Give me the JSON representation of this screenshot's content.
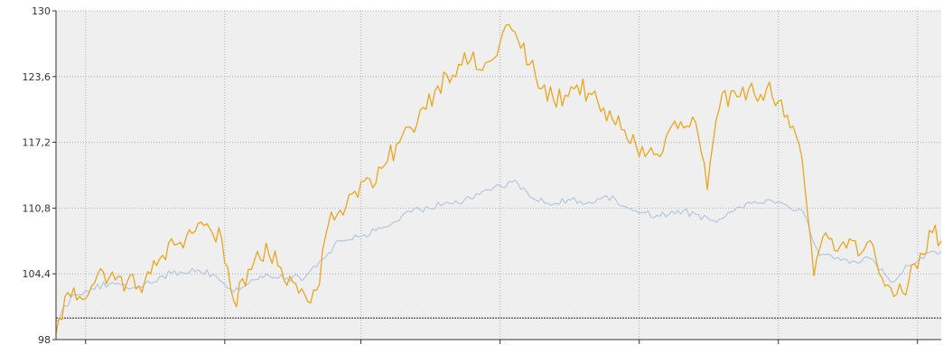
{
  "chart_data": {
    "type": "line",
    "title": "",
    "xlabel": "",
    "ylabel": "",
    "ylim": [
      98,
      130
    ],
    "xlim": [
      0,
      299
    ],
    "y_ticks": [
      98,
      104.4,
      110.8,
      117.2,
      123.6,
      130
    ],
    "y_tick_labels": [
      "98",
      "104,4",
      "110,8",
      "117,2",
      "123,6",
      "130"
    ],
    "x_ticks": [
      10,
      57,
      103,
      150,
      197,
      244,
      291
    ],
    "x_tick_labels": [],
    "grid": true,
    "baseline": 100.1,
    "colors": {
      "background": "#efefef",
      "grid": "#b0b0b0",
      "axis": "#333333",
      "baseline": "#222222"
    },
    "series": [
      {
        "color": "#e8a623",
        "x_range": [
          0,
          299
        ],
        "anchors": [
          [
            0,
            98.6
          ],
          [
            4,
            102.6
          ],
          [
            8,
            102.2
          ],
          [
            12,
            103.2
          ],
          [
            16,
            104.6
          ],
          [
            20,
            103.8
          ],
          [
            24,
            103.6
          ],
          [
            28,
            103.2
          ],
          [
            32,
            104.4
          ],
          [
            36,
            106.2
          ],
          [
            40,
            107.2
          ],
          [
            44,
            108.0
          ],
          [
            48,
            109.3
          ],
          [
            52,
            108.8
          ],
          [
            56,
            107.8
          ],
          [
            60,
            101.8
          ],
          [
            64,
            103.2
          ],
          [
            68,
            106.6
          ],
          [
            72,
            106.2
          ],
          [
            76,
            105.0
          ],
          [
            80,
            103.6
          ],
          [
            84,
            102.4
          ],
          [
            88,
            102.8
          ],
          [
            92,
            109.2
          ],
          [
            96,
            110.6
          ],
          [
            100,
            112.2
          ],
          [
            104,
            113.4
          ],
          [
            108,
            113.2
          ],
          [
            112,
            115.4
          ],
          [
            116,
            117.2
          ],
          [
            120,
            118.6
          ],
          [
            124,
            120.6
          ],
          [
            128,
            122.2
          ],
          [
            132,
            123.8
          ],
          [
            136,
            124.8
          ],
          [
            140,
            125.2
          ],
          [
            144,
            124.2
          ],
          [
            148,
            125.4
          ],
          [
            152,
            128.6
          ],
          [
            156,
            127.2
          ],
          [
            160,
            124.8
          ],
          [
            164,
            122.4
          ],
          [
            168,
            121.4
          ],
          [
            172,
            121.8
          ],
          [
            176,
            122.8
          ],
          [
            180,
            122.0
          ],
          [
            184,
            120.2
          ],
          [
            188,
            119.4
          ],
          [
            192,
            118.4
          ],
          [
            196,
            116.8
          ],
          [
            200,
            116.2
          ],
          [
            204,
            115.8
          ],
          [
            208,
            118.8
          ],
          [
            212,
            118.6
          ],
          [
            216,
            119.2
          ],
          [
            220,
            112.6
          ],
          [
            224,
            120.4
          ],
          [
            228,
            122.2
          ],
          [
            232,
            122.6
          ],
          [
            236,
            121.8
          ],
          [
            240,
            122.4
          ],
          [
            244,
            121.2
          ],
          [
            248,
            118.6
          ],
          [
            252,
            115.6
          ],
          [
            256,
            104.2
          ],
          [
            260,
            108.4
          ],
          [
            264,
            106.6
          ],
          [
            268,
            107.8
          ],
          [
            272,
            106.4
          ],
          [
            276,
            107.2
          ],
          [
            280,
            103.2
          ],
          [
            284,
            102.4
          ],
          [
            288,
            103.6
          ],
          [
            292,
            106.4
          ],
          [
            296,
            108.4
          ],
          [
            299,
            107.6
          ]
        ]
      },
      {
        "color": "#b5c7dd",
        "x_range": [
          0,
          299
        ],
        "anchors": [
          [
            0,
            99.8
          ],
          [
            6,
            102.4
          ],
          [
            12,
            103.0
          ],
          [
            18,
            103.4
          ],
          [
            24,
            103.0
          ],
          [
            30,
            103.4
          ],
          [
            36,
            104.2
          ],
          [
            42,
            104.6
          ],
          [
            48,
            104.8
          ],
          [
            54,
            104.2
          ],
          [
            60,
            102.6
          ],
          [
            66,
            103.8
          ],
          [
            72,
            104.2
          ],
          [
            78,
            104.0
          ],
          [
            84,
            104.0
          ],
          [
            90,
            105.8
          ],
          [
            96,
            107.6
          ],
          [
            102,
            108.0
          ],
          [
            108,
            108.6
          ],
          [
            114,
            109.4
          ],
          [
            120,
            110.4
          ],
          [
            126,
            110.8
          ],
          [
            132,
            111.4
          ],
          [
            138,
            111.6
          ],
          [
            144,
            112.4
          ],
          [
            150,
            113.0
          ],
          [
            156,
            113.2
          ],
          [
            162,
            111.6
          ],
          [
            168,
            111.2
          ],
          [
            174,
            111.6
          ],
          [
            180,
            111.4
          ],
          [
            186,
            112.0
          ],
          [
            192,
            111.0
          ],
          [
            198,
            110.4
          ],
          [
            204,
            110.0
          ],
          [
            210,
            110.6
          ],
          [
            216,
            110.2
          ],
          [
            222,
            109.6
          ],
          [
            228,
            110.4
          ],
          [
            234,
            111.4
          ],
          [
            240,
            111.6
          ],
          [
            246,
            111.2
          ],
          [
            252,
            110.6
          ],
          [
            258,
            106.2
          ],
          [
            264,
            106.0
          ],
          [
            270,
            105.6
          ],
          [
            276,
            105.8
          ],
          [
            282,
            103.6
          ],
          [
            288,
            105.2
          ],
          [
            294,
            106.4
          ],
          [
            299,
            106.6
          ]
        ]
      }
    ]
  }
}
